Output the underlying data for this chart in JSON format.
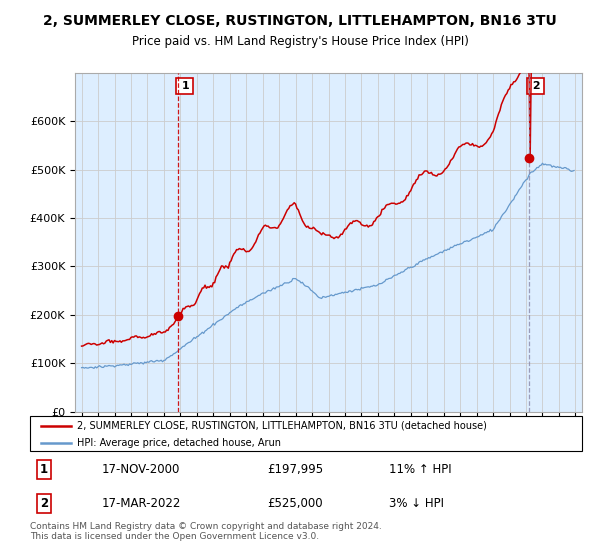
{
  "title_line1": "2, SUMMERLEY CLOSE, RUSTINGTON, LITTLEHAMPTON, BN16 3TU",
  "title_line2": "Price paid vs. HM Land Registry's House Price Index (HPI)",
  "legend_label1": "2, SUMMERLEY CLOSE, RUSTINGTON, LITTLEHAMPTON, BN16 3TU (detached house)",
  "legend_label2": "HPI: Average price, detached house, Arun",
  "sale1_num": "1",
  "sale1_date": "17-NOV-2000",
  "sale1_price": "£197,995",
  "sale1_hpi": "11% ↑ HPI",
  "sale2_num": "2",
  "sale2_date": "17-MAR-2022",
  "sale2_price": "£525,000",
  "sale2_hpi": "3% ↓ HPI",
  "footer": "Contains HM Land Registry data © Crown copyright and database right 2024.\nThis data is licensed under the Open Government Licence v3.0.",
  "line1_color": "#cc0000",
  "line2_color": "#6699cc",
  "vline1_color": "#cc0000",
  "vline2_color": "#8888aa",
  "marker_color": "#cc0000",
  "grid_color": "#cccccc",
  "bg_color": "#ffffff",
  "chart_bg_color": "#ddeeff",
  "ylim": [
    0,
    700000
  ],
  "yticks": [
    0,
    100000,
    200000,
    300000,
    400000,
    500000,
    600000
  ],
  "ytick_labels": [
    "£0",
    "£100K",
    "£200K",
    "£300K",
    "£400K",
    "£500K",
    "£600K"
  ],
  "sale1_year": 2000.88,
  "sale1_value": 197995,
  "sale2_year": 2022.21,
  "sale2_value": 525000,
  "vline1_x": 2000.88,
  "vline2_x": 2022.21,
  "xlim_left": 1994.6,
  "xlim_right": 2025.4
}
